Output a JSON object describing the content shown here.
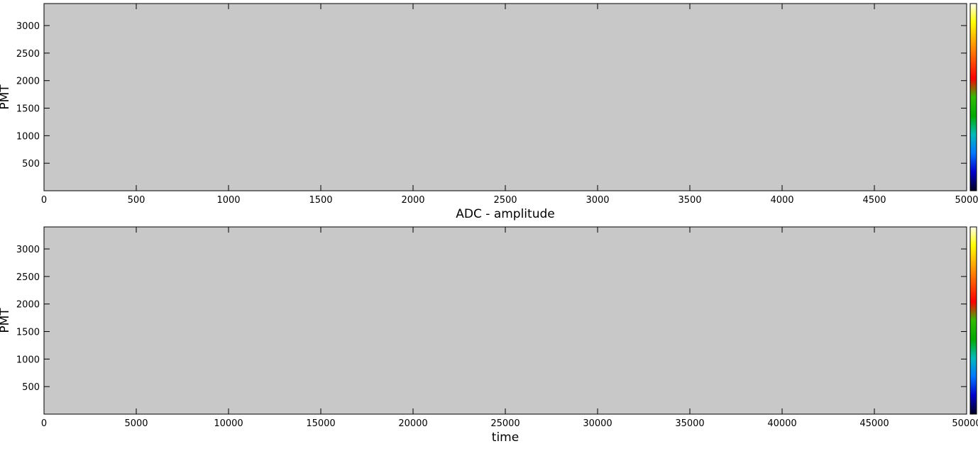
{
  "chart_data": [
    {
      "type": "heatmap",
      "xlabel": "ADC - amplitude",
      "ylabel": "PMT",
      "xlim": [
        0,
        5000
      ],
      "ylim": [
        0,
        3400
      ],
      "x_ticks": [
        0,
        500,
        1000,
        1500,
        2000,
        2500,
        3000,
        3500,
        4000,
        4500,
        5000
      ],
      "y_ticks": [
        500,
        1000,
        1500,
        2000,
        2500,
        3000
      ],
      "values": [],
      "background_color": "#c8c8c8",
      "colorbar": true,
      "colormap": [
        "#000022",
        "#0000cc",
        "#0077ff",
        "#00bbbb",
        "#00aa00",
        "#33bb00",
        "#ff0000",
        "#ff5500",
        "#ffaa00",
        "#ffff00",
        "#ffffee"
      ]
    },
    {
      "type": "heatmap",
      "xlabel": "time",
      "ylabel": "PMT",
      "xlim": [
        0,
        50000
      ],
      "ylim": [
        0,
        3400
      ],
      "x_ticks": [
        0,
        5000,
        10000,
        15000,
        20000,
        25000,
        30000,
        35000,
        40000,
        45000,
        50000
      ],
      "y_ticks": [
        500,
        1000,
        1500,
        2000,
        2500,
        3000
      ],
      "values": [],
      "background_color": "#c8c8c8",
      "colorbar": true,
      "colormap": [
        "#000022",
        "#0000cc",
        "#0077ff",
        "#00bbbb",
        "#00aa00",
        "#33bb00",
        "#ff0000",
        "#ff5500",
        "#ffaa00",
        "#ffff00",
        "#ffffee"
      ]
    }
  ]
}
